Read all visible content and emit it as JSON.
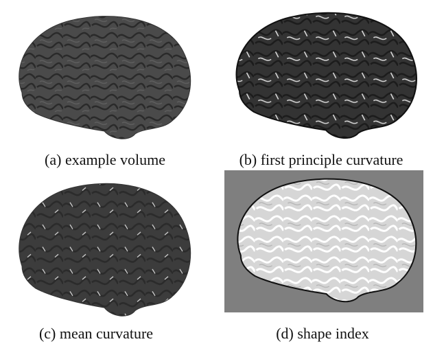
{
  "panels": [
    {
      "caption": "(a) example volume"
    },
    {
      "caption": "(b) first principle curvature"
    },
    {
      "caption": "(c) mean curvature"
    },
    {
      "caption": "(d) shape index"
    }
  ]
}
